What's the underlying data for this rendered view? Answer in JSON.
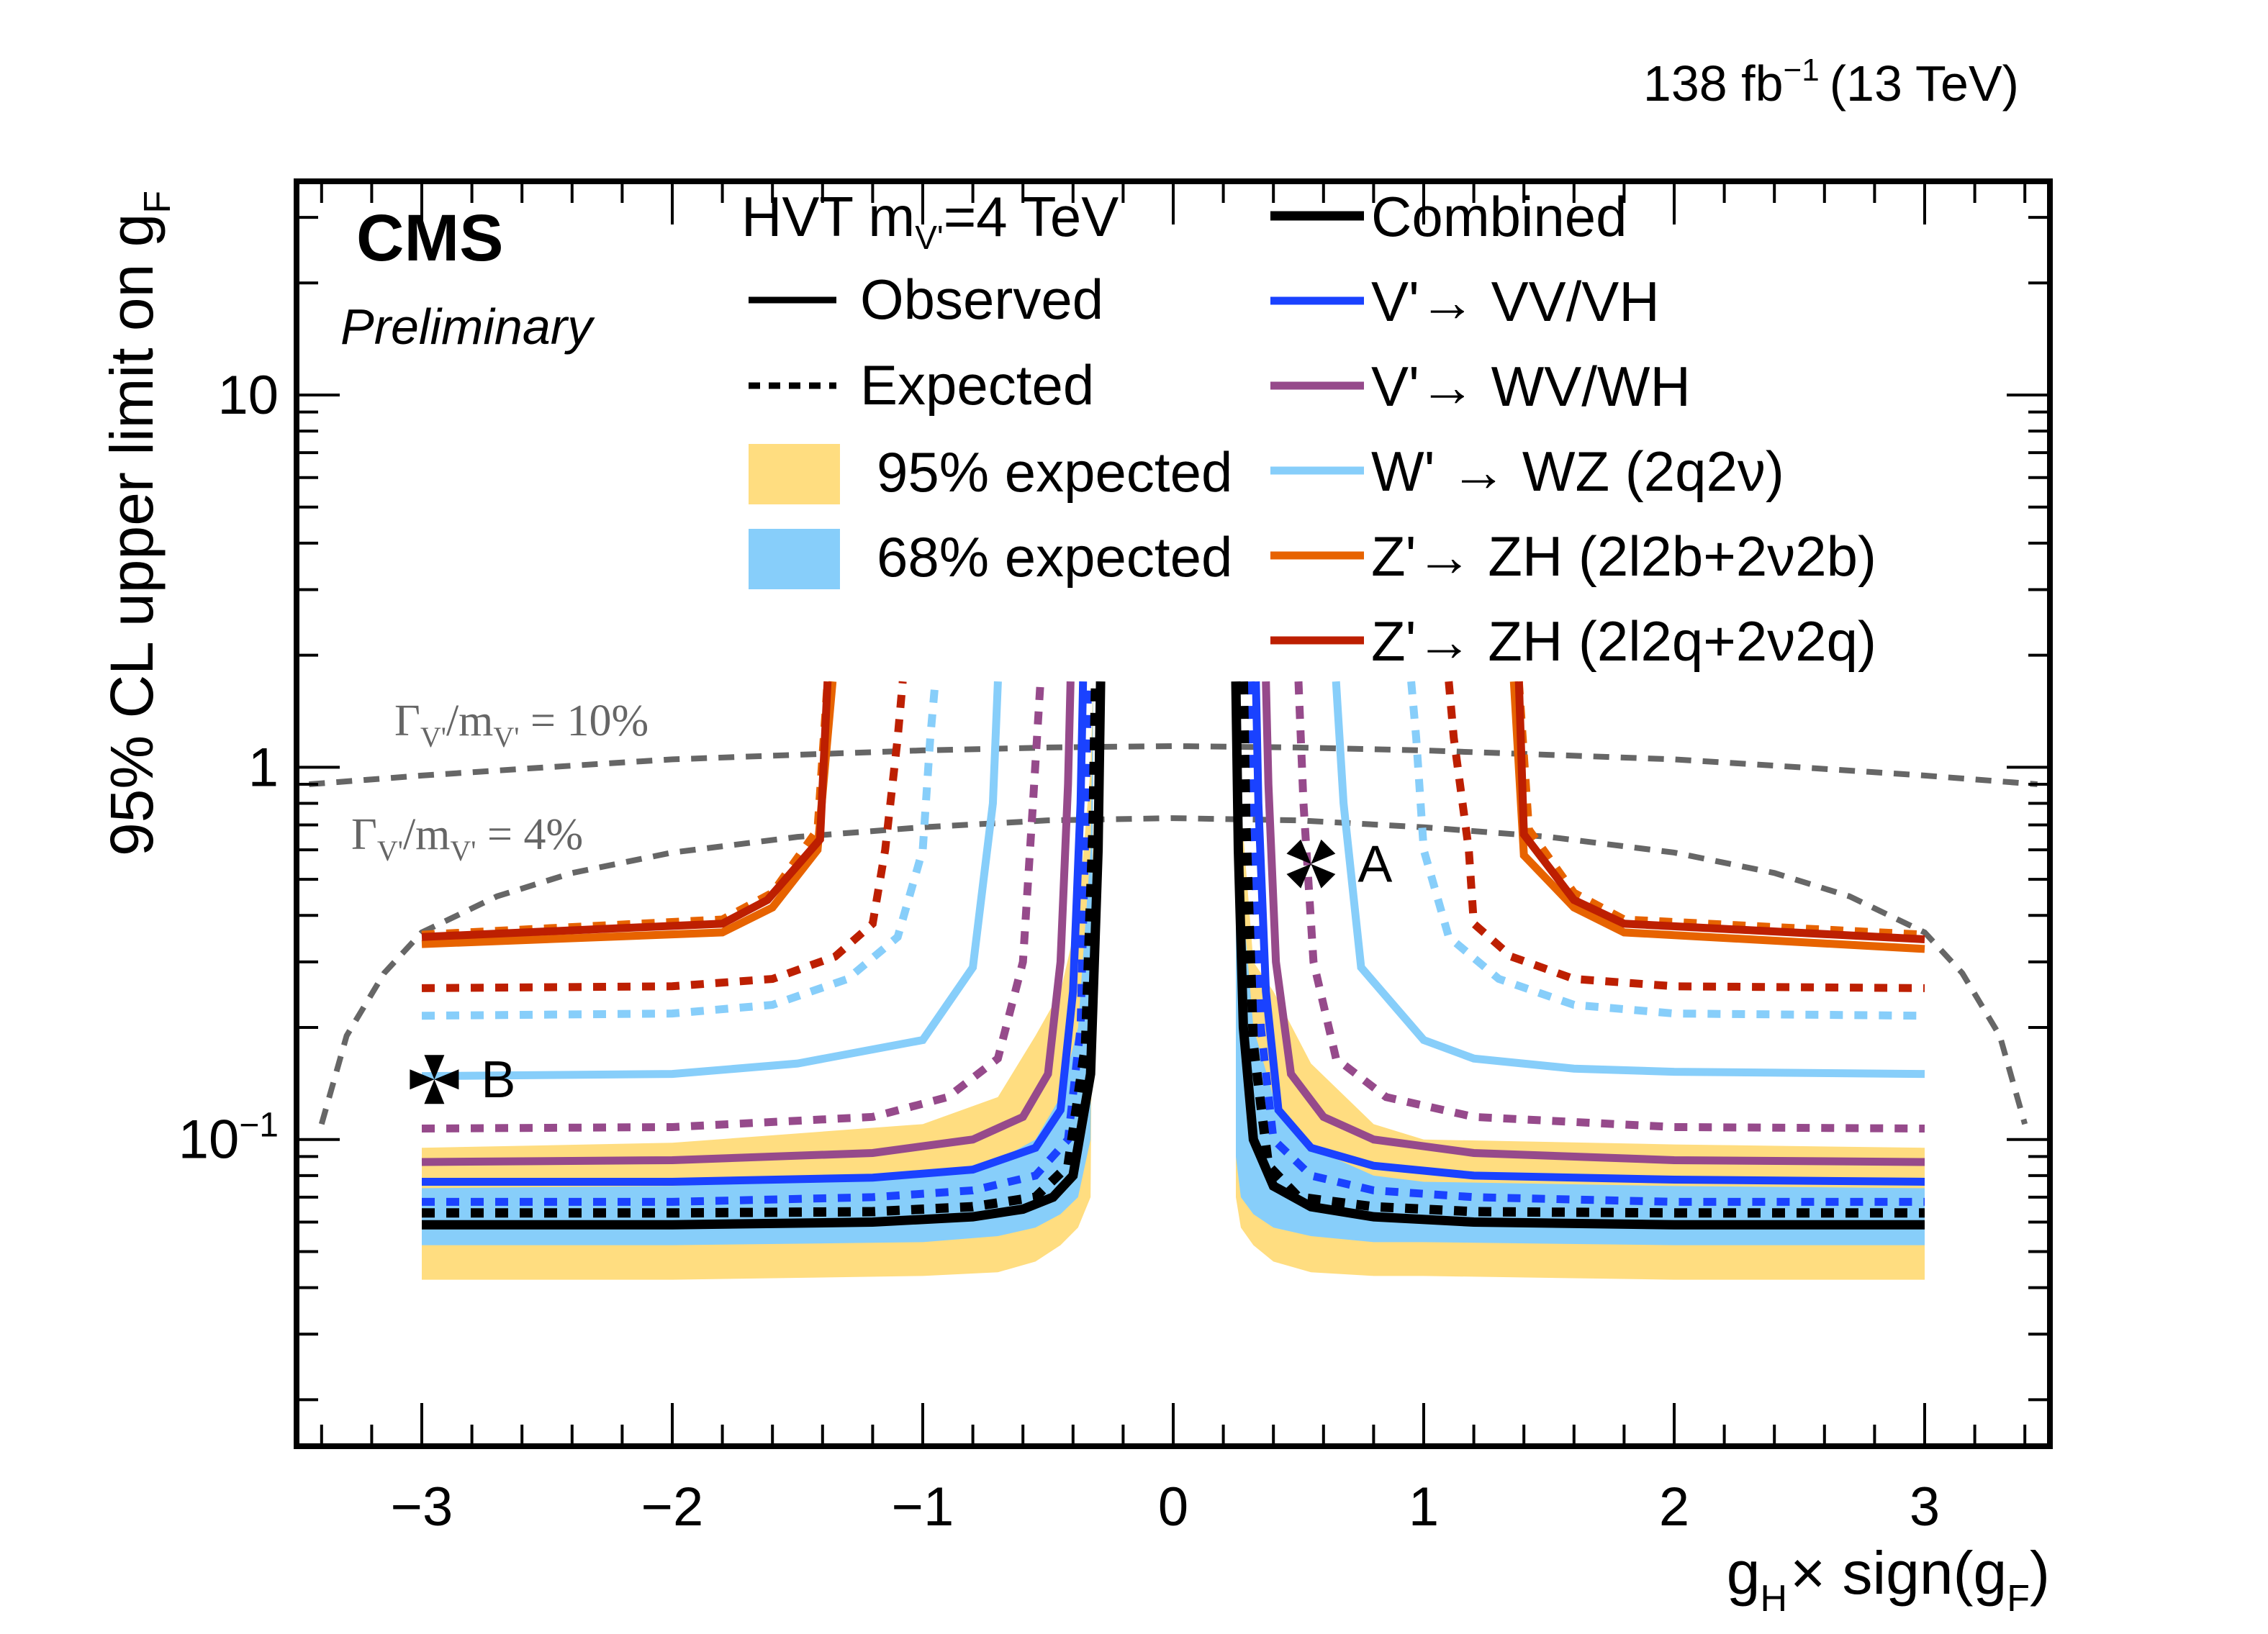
{
  "chart_data": {
    "type": "line",
    "experiment": "CMS",
    "status": "Preliminary",
    "lumi_label": "138 fb",
    "lumi_exp": "−1",
    "energy_label": "(13 TeV)",
    "xlabel_main": "g",
    "xlabel_sub": "H",
    "xlabel_rest": "× sign(g",
    "xlabel_sub2": "F",
    "xlabel_close": ")",
    "ylabel_main": "95% CL upper limit on g",
    "ylabel_sub": "F",
    "xlim": [
      -3.5,
      3.5
    ],
    "ylim": [
      0.015,
      37.5
    ],
    "yscale": "log",
    "x_ticks": [
      -3,
      -2,
      -1,
      0,
      1,
      2,
      3
    ],
    "x_tick_labels": [
      "−3",
      "−2",
      "−1",
      "0",
      "1",
      "2",
      "3"
    ],
    "y_ticks": [
      0.1,
      1,
      10
    ],
    "y_tick_labels": [
      {
        "base": "10",
        "exp": "−1"
      },
      {
        "base": "1",
        "exp": ""
      },
      {
        "base": "10",
        "exp": ""
      }
    ],
    "legend": {
      "header": "HVT m",
      "header_sub": "V'",
      "header_rest": "=4 TeV",
      "style_entries": [
        {
          "label": "Observed",
          "style": "solid"
        },
        {
          "label": "Expected",
          "style": "dotted"
        },
        {
          "label": "95% expected",
          "style": "band",
          "color": "#FFDD80"
        },
        {
          "label": "68% expected",
          "style": "band",
          "color": "#87CEFA"
        }
      ],
      "channel_entries": [
        {
          "label": "Combined",
          "color": "#000000"
        },
        {
          "label": "V'→ VV/VH",
          "color": "#1A42FF"
        },
        {
          "label": "V'→ WV/WH",
          "color": "#964A8B"
        },
        {
          "label": "W' → WZ (2q2ν)",
          "color": "#87CEFA"
        },
        {
          "label": "Z'→ ZH (2l2b+2ν2b)",
          "color": "#E76300"
        },
        {
          "label": "Z'→ ZH (2l2q+2ν2q)",
          "color": "#BD1F01"
        }
      ]
    },
    "width_contours": [
      {
        "label_pre": "Γ",
        "label_sub": "V'",
        "label_mid": "/m",
        "label_sub2": "V'",
        "label_post": " = 10%",
        "x": [
          -3.45,
          -3,
          -2.5,
          -2,
          -1.5,
          -1,
          -0.5,
          0,
          0.5,
          1,
          1.5,
          2,
          2.5,
          3,
          3.45
        ],
        "y": [
          0.9,
          0.95,
          1.0,
          1.05,
          1.08,
          1.11,
          1.13,
          1.14,
          1.13,
          1.11,
          1.08,
          1.05,
          1.0,
          0.95,
          0.9
        ]
      },
      {
        "label_pre": "Γ",
        "label_sub": "V'",
        "label_mid": "/m",
        "label_sub2": "V'",
        "label_post": " = 4%",
        "x": [
          -3.4,
          -3.3,
          -3.15,
          -3.0,
          -2.7,
          -2.4,
          -2.0,
          -1.5,
          -1.0,
          -0.5,
          0,
          0.5,
          1.0,
          1.5,
          2.0,
          2.4,
          2.7,
          3.0,
          3.15,
          3.3,
          3.4
        ],
        "y": [
          0.11,
          0.19,
          0.28,
          0.36,
          0.45,
          0.52,
          0.59,
          0.65,
          0.69,
          0.72,
          0.73,
          0.72,
          0.69,
          0.65,
          0.59,
          0.52,
          0.45,
          0.36,
          0.28,
          0.19,
          0.11
        ]
      }
    ],
    "bands": [
      {
        "name": "95% expected",
        "color": "#FFDD80",
        "left": {
          "x": [
            -3,
            -2,
            -1,
            -0.7,
            -0.55,
            -0.45,
            -0.38,
            -0.33,
            -0.32
          ],
          "lo": [
            0.042,
            0.042,
            0.043,
            0.044,
            0.047,
            0.052,
            0.058,
            0.07,
            0.5
          ],
          "hi": [
            0.095,
            0.098,
            0.11,
            0.13,
            0.19,
            0.25,
            0.4,
            1.0,
            1.7
          ]
        },
        "right": {
          "x": [
            0.25,
            0.27,
            0.32,
            0.4,
            0.55,
            0.8,
            1.0,
            2.0,
            3.0
          ],
          "hi": [
            1.7,
            0.8,
            0.3,
            0.25,
            0.16,
            0.11,
            0.1,
            0.097,
            0.095
          ],
          "lo": [
            0.07,
            0.058,
            0.052,
            0.047,
            0.044,
            0.043,
            0.043,
            0.042,
            0.042
          ]
        }
      },
      {
        "name": "68% expected",
        "color": "#87CEFA",
        "left": {
          "x": [
            -3,
            -2,
            -1,
            -0.7,
            -0.55,
            -0.45,
            -0.38,
            -0.33,
            -0.32
          ],
          "lo": [
            0.052,
            0.052,
            0.053,
            0.055,
            0.058,
            0.063,
            0.07,
            0.1,
            0.9
          ],
          "hi": [
            0.074,
            0.075,
            0.08,
            0.088,
            0.1,
            0.13,
            0.2,
            0.6,
            1.7
          ]
        },
        "right": {
          "x": [
            0.25,
            0.27,
            0.32,
            0.4,
            0.55,
            0.8,
            1.0,
            2.0,
            3.0
          ],
          "hi": [
            1.7,
            0.5,
            0.2,
            0.13,
            0.095,
            0.08,
            0.077,
            0.075,
            0.074
          ],
          "lo": [
            0.09,
            0.07,
            0.063,
            0.058,
            0.055,
            0.053,
            0.053,
            0.052,
            0.052
          ]
        }
      }
    ],
    "series": [
      {
        "name": "Z'→ ZH (2l2b+2ν2b) expected",
        "color": "#E76300",
        "style": "dotted",
        "left": {
          "x": [
            -3,
            -1.8,
            -1.6,
            -1.42,
            -1.38
          ],
          "y": [
            0.355,
            0.39,
            0.46,
            0.68,
            1.7
          ]
        },
        "right": {
          "x": [
            1.38,
            1.42,
            1.6,
            1.8,
            3
          ],
          "y": [
            1.7,
            0.68,
            0.46,
            0.39,
            0.355
          ]
        }
      },
      {
        "name": "Z'→ ZH (2l2b+2ν2b) observed",
        "color": "#E76300",
        "style": "solid",
        "left": {
          "x": [
            -3,
            -1.8,
            -1.6,
            -1.42,
            -1.36
          ],
          "y": [
            0.335,
            0.36,
            0.42,
            0.6,
            1.7
          ]
        },
        "right": {
          "x": [
            1.36,
            1.4,
            1.6,
            1.8,
            3
          ],
          "y": [
            1.7,
            0.58,
            0.42,
            0.36,
            0.325
          ]
        }
      },
      {
        "name": "Z'→ ZH (2l2q+2ν2q) observed",
        "color": "#BD1F01",
        "style": "solid",
        "left": {
          "x": [
            -3,
            -1.8,
            -1.62,
            -1.41,
            -1.38
          ],
          "y": [
            0.35,
            0.38,
            0.44,
            0.64,
            1.7
          ]
        },
        "right": {
          "x": [
            1.38,
            1.4,
            1.6,
            1.8,
            3
          ],
          "y": [
            1.7,
            0.66,
            0.44,
            0.38,
            0.345
          ]
        }
      },
      {
        "name": "Z'→ ZH (2l2q+2ν2q) expected",
        "color": "#BD1F01",
        "style": "dotted",
        "left": {
          "x": [
            -3,
            -2,
            -1.6,
            -1.35,
            -1.2,
            -1.15,
            -1.1,
            -1.08
          ],
          "y": [
            0.255,
            0.258,
            0.27,
            0.31,
            0.38,
            0.6,
            1.2,
            1.7
          ]
        },
        "right": {
          "x": [
            1.1,
            1.12,
            1.18,
            1.2,
            1.35,
            1.6,
            2,
            3
          ],
          "y": [
            1.7,
            1.2,
            0.6,
            0.38,
            0.31,
            0.27,
            0.258,
            0.255
          ]
        }
      },
      {
        "name": "W' → WZ (2q2ν) expected",
        "color": "#87CEFA",
        "style": "dotted",
        "left": {
          "x": [
            -3,
            -2,
            -1.6,
            -1.3,
            -1.1,
            -1.0,
            -0.97,
            -0.95
          ],
          "y": [
            0.215,
            0.218,
            0.23,
            0.27,
            0.35,
            0.6,
            1.2,
            1.7
          ]
        },
        "right": {
          "x": [
            0.95,
            0.97,
            1.0,
            1.1,
            1.3,
            1.6,
            2,
            3
          ],
          "y": [
            1.7,
            1.2,
            0.6,
            0.35,
            0.27,
            0.23,
            0.218,
            0.215
          ]
        }
      },
      {
        "name": "W' → WZ (2q2ν) observed",
        "color": "#87CEFA",
        "style": "solid",
        "left": {
          "x": [
            -3,
            -2,
            -1.5,
            -1.0,
            -0.8,
            -0.72,
            -0.7
          ],
          "y": [
            0.148,
            0.15,
            0.16,
            0.185,
            0.29,
            0.8,
            1.7
          ]
        },
        "right": {
          "x": [
            0.65,
            0.68,
            0.75,
            1.0,
            1.2,
            1.6,
            2,
            3
          ],
          "y": [
            1.7,
            0.8,
            0.29,
            0.185,
            0.165,
            0.155,
            0.152,
            0.15
          ]
        }
      },
      {
        "name": "V'→ WV/WH expected",
        "color": "#964A8B",
        "style": "dotted",
        "left": {
          "x": [
            -3,
            -2,
            -1.2,
            -0.9,
            -0.7,
            -0.6,
            -0.56,
            -0.53
          ],
          "y": [
            0.107,
            0.108,
            0.115,
            0.13,
            0.165,
            0.3,
            0.8,
            1.7
          ]
        },
        "right": {
          "x": [
            0.5,
            0.52,
            0.56,
            0.65,
            0.85,
            1.2,
            2,
            3
          ],
          "y": [
            1.7,
            0.8,
            0.3,
            0.165,
            0.13,
            0.115,
            0.108,
            0.107
          ]
        }
      },
      {
        "name": "V'→ WV/WH observed",
        "color": "#964A8B",
        "style": "solid",
        "left": {
          "x": [
            -3,
            -2,
            -1.2,
            -0.8,
            -0.6,
            -0.5,
            -0.45,
            -0.42,
            -0.41
          ],
          "y": [
            0.087,
            0.088,
            0.092,
            0.1,
            0.115,
            0.15,
            0.3,
            0.9,
            1.7
          ]
        },
        "right": {
          "x": [
            0.37,
            0.38,
            0.41,
            0.47,
            0.6,
            0.8,
            1.2,
            2,
            3
          ],
          "y": [
            1.7,
            0.9,
            0.3,
            0.15,
            0.115,
            0.1,
            0.092,
            0.088,
            0.087
          ]
        }
      },
      {
        "name": "V'→ VV/VH observed",
        "color": "#1A42FF",
        "style": "solid",
        "left": {
          "x": [
            -3,
            -2,
            -1.2,
            -0.8,
            -0.55,
            -0.45,
            -0.4,
            -0.37,
            -0.36
          ],
          "y": [
            0.077,
            0.077,
            0.079,
            0.083,
            0.095,
            0.12,
            0.25,
            0.8,
            1.7
          ]
        },
        "right": {
          "x": [
            0.33,
            0.34,
            0.37,
            0.42,
            0.55,
            0.8,
            1.2,
            2,
            3
          ],
          "y": [
            1.7,
            0.8,
            0.25,
            0.12,
            0.095,
            0.085,
            0.08,
            0.078,
            0.077
          ]
        }
      },
      {
        "name": "V'→ VV/VH expected",
        "color": "#1A42FF",
        "style": "dotted",
        "left": {
          "x": [
            -3,
            -2,
            -1.2,
            -0.8,
            -0.55,
            -0.42,
            -0.37,
            -0.35,
            -0.34
          ],
          "y": [
            0.068,
            0.068,
            0.07,
            0.073,
            0.08,
            0.1,
            0.2,
            0.7,
            1.7
          ]
        },
        "right": {
          "x": [
            0.31,
            0.32,
            0.35,
            0.4,
            0.55,
            0.8,
            1.2,
            2,
            3
          ],
          "y": [
            1.7,
            0.7,
            0.2,
            0.1,
            0.08,
            0.073,
            0.07,
            0.068,
            0.068
          ]
        }
      },
      {
        "name": "Combined expected",
        "color": "#000000",
        "style": "dotted",
        "left": {
          "x": [
            -3,
            -2,
            -1.2,
            -0.8,
            -0.55,
            -0.42,
            -0.35,
            -0.32,
            -0.31
          ],
          "y": [
            0.0635,
            0.0635,
            0.064,
            0.066,
            0.07,
            0.085,
            0.18,
            0.7,
            1.7
          ]
        },
        "right": {
          "x": [
            0.28,
            0.29,
            0.32,
            0.38,
            0.5,
            0.8,
            1.2,
            2,
            3
          ],
          "y": [
            1.7,
            0.7,
            0.18,
            0.085,
            0.07,
            0.066,
            0.064,
            0.0635,
            0.0635
          ]
        }
      },
      {
        "name": "Combined observed",
        "color": "#000000",
        "style": "solid",
        "left": {
          "x": [
            -3,
            -2,
            -1.2,
            -0.8,
            -0.6,
            -0.48,
            -0.4,
            -0.33,
            -0.3,
            -0.29
          ],
          "y": [
            0.059,
            0.059,
            0.06,
            0.062,
            0.065,
            0.07,
            0.08,
            0.15,
            0.6,
            1.7
          ]
        },
        "right": {
          "x": [
            0.25,
            0.26,
            0.28,
            0.32,
            0.4,
            0.55,
            0.8,
            1.2,
            2,
            3
          ],
          "y": [
            1.7,
            0.6,
            0.2,
            0.1,
            0.075,
            0.066,
            0.062,
            0.06,
            0.059,
            0.059
          ]
        }
      }
    ],
    "markers": [
      {
        "label": "A",
        "x": 0.55,
        "y": 0.55,
        "shape": "x-cross"
      },
      {
        "label": "B",
        "x": -2.95,
        "y": 0.145,
        "shape": "plus-cross"
      }
    ]
  }
}
